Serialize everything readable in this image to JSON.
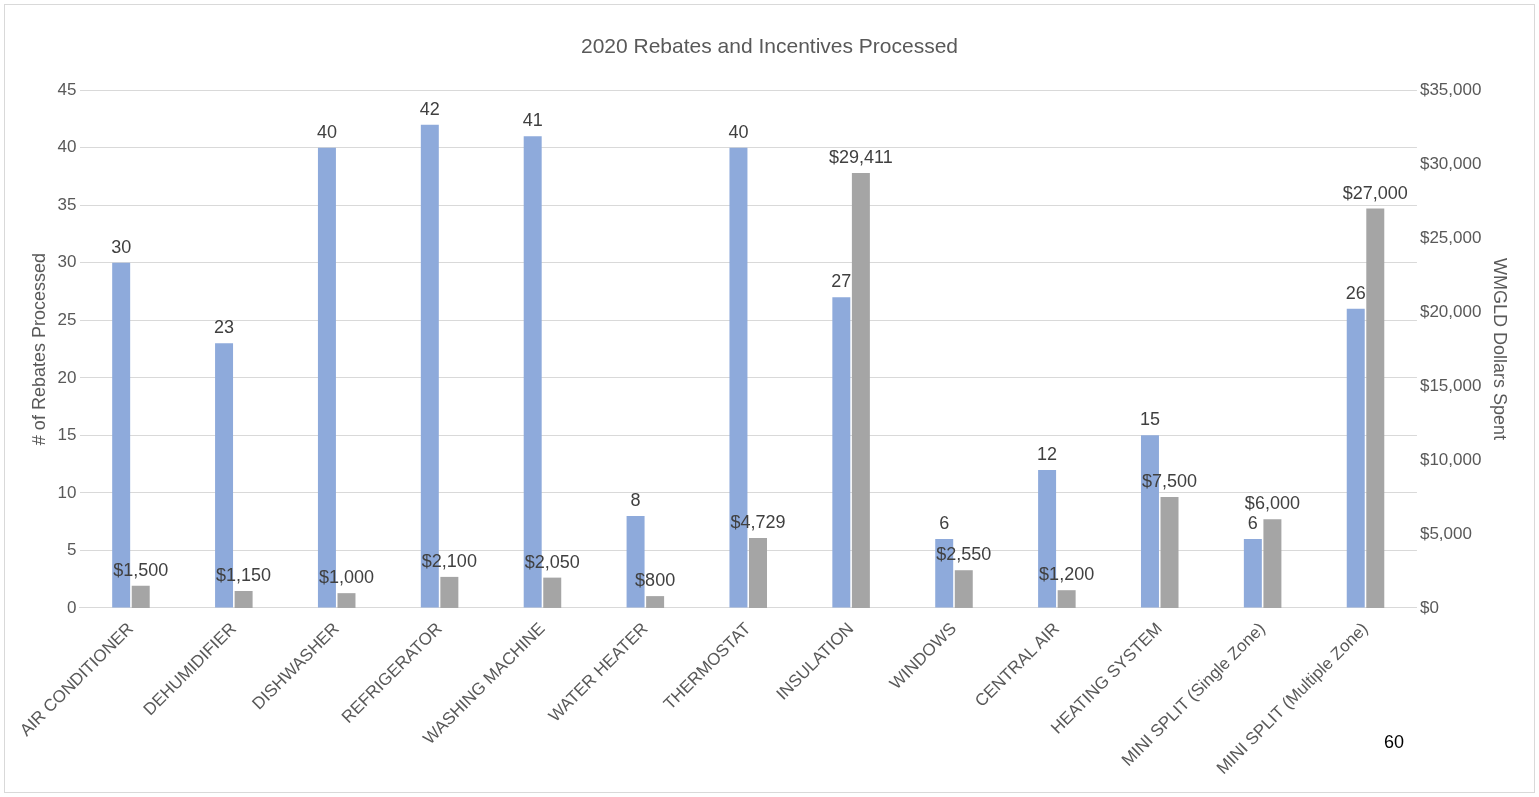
{
  "chart_data": {
    "type": "bar",
    "title": "2020 Rebates and Incentives Processed",
    "ylabel": "# of Rebates Processed",
    "y2label": "WMGLD Dollars Spent",
    "categories": [
      "AIR CONDITIONER",
      "DEHUMIDIFIER",
      "DISHWASHER",
      "REFRIGERATOR",
      "WASHING MACHINE",
      "WATER HEATER",
      "THERMOSTAT",
      "INSULATION",
      "WINDOWS",
      "CENTRAL AIR",
      "HEATING SYSTEM",
      "MINI SPLIT (Single Zone)",
      "MINI SPLIT (Multiple Zone)"
    ],
    "series": [
      {
        "color": "#8eaadb",
        "values": [
          30,
          23,
          40,
          42,
          41,
          8,
          40,
          27,
          6,
          12,
          15,
          6,
          26
        ],
        "value_labels": [
          "30",
          "23",
          "40",
          "42",
          "41",
          "8",
          "40",
          "27",
          "6",
          "12",
          "15",
          "6",
          "26"
        ]
      },
      {
        "color": "#a5a5a5",
        "axis": "y2",
        "values": [
          1500,
          1150,
          1000,
          2100,
          2050,
          800,
          4729,
          29411,
          2550,
          1200,
          7500,
          6000,
          27000
        ],
        "value_labels": [
          "$1,500",
          "$1,150",
          "$1,000",
          "$2,100",
          "$2,050",
          "$800",
          "$4,729",
          "$29,411",
          "$2,550",
          "$1,200",
          "$7,500",
          "$6,000",
          "$27,000"
        ]
      }
    ],
    "ylim": [
      0,
      45
    ],
    "yticks": [
      0,
      5,
      10,
      15,
      20,
      25,
      30,
      35,
      40,
      45
    ],
    "y2lim": [
      0,
      35000
    ],
    "y2ticks": [
      {
        "value": 0,
        "label": "$0"
      },
      {
        "value": 5000,
        "label": "$5,000"
      },
      {
        "value": 10000,
        "label": "$10,000"
      },
      {
        "value": 15000,
        "label": "$15,000"
      },
      {
        "value": 20000,
        "label": "$20,000"
      },
      {
        "value": 25000,
        "label": "$25,000"
      },
      {
        "value": 30000,
        "label": "$30,000"
      },
      {
        "value": 35000,
        "label": "$35,000"
      }
    ],
    "grid": "y",
    "legend": false,
    "annotations": [
      "60"
    ]
  }
}
